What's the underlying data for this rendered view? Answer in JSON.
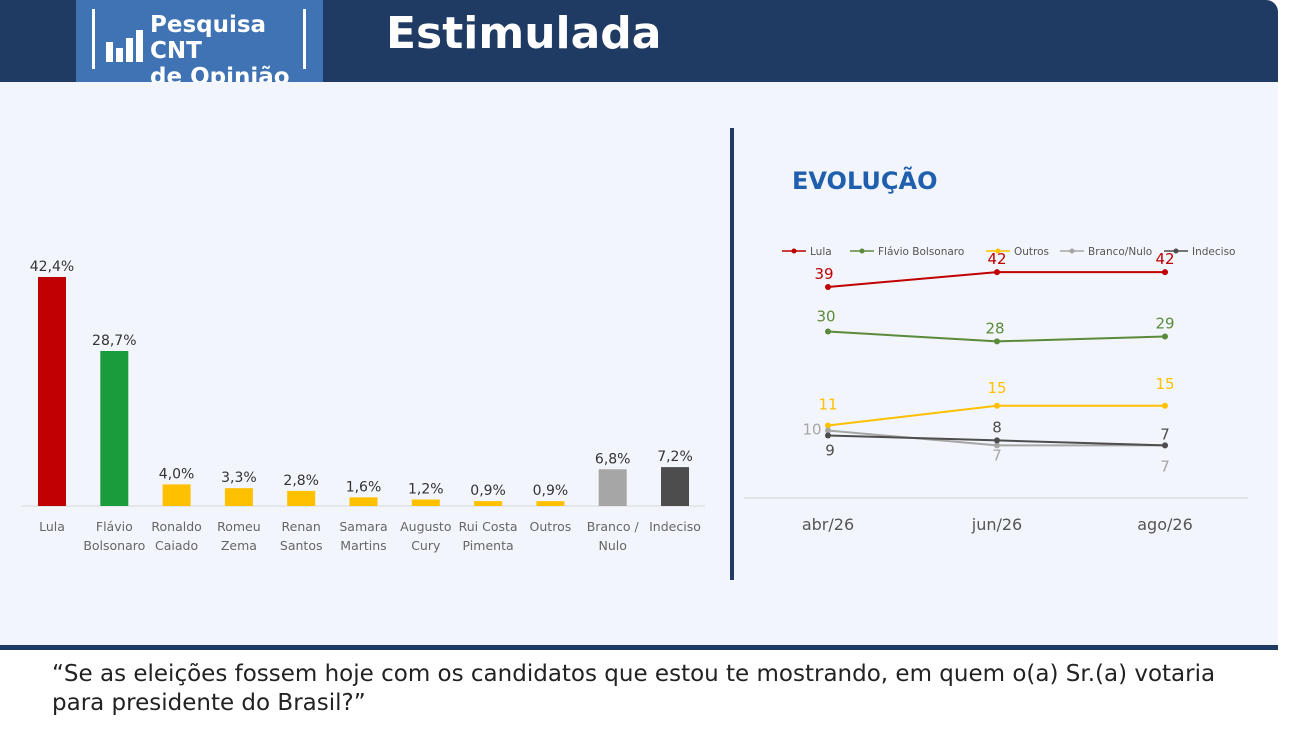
{
  "header": {
    "logo_line1": "Pesquisa CNT",
    "logo_line2": "de Opinião",
    "title": "Estimulada"
  },
  "question": "“Se as eleições fossem hoje com os candidatos que estou te mostrando, em quem o(a) Sr.(a) votaria para presidente do Brasil?”",
  "colors": {
    "header_bg": "#1f3a63",
    "logo_bg": "#3f73b3",
    "lula": "#c00000",
    "flavio": "#1a9b3c",
    "others_yellow": "#ffc000",
    "branco": "#a6a6a6",
    "indeciso": "#4d4d4d",
    "evolucao_title": "#1f5fae"
  },
  "chart_data": [
    {
      "type": "bar",
      "title": "",
      "categories": [
        [
          "Lula"
        ],
        [
          "Flávio",
          "Bolsonaro"
        ],
        [
          "Ronaldo",
          "Caiado"
        ],
        [
          "Romeu",
          "Zema"
        ],
        [
          "Renan",
          "Santos"
        ],
        [
          "Samara",
          "Martins"
        ],
        [
          "Augusto",
          "Cury"
        ],
        [
          "Rui Costa",
          "Pimenta"
        ],
        [
          "Outros"
        ],
        [
          "Branco /",
          "Nulo"
        ],
        [
          "Indeciso"
        ]
      ],
      "values": [
        42.4,
        28.7,
        4.0,
        3.3,
        2.8,
        1.6,
        1.2,
        0.9,
        0.9,
        6.8,
        7.2
      ],
      "value_labels": [
        "42,4%",
        "28,7%",
        "4,0%",
        "3,3%",
        "2,8%",
        "1,6%",
        "1,2%",
        "0,9%",
        "0,9%",
        "6,8%",
        "7,2%"
      ],
      "bar_colors": [
        "#c00000",
        "#1a9b3c",
        "#ffc000",
        "#ffc000",
        "#ffc000",
        "#ffc000",
        "#ffc000",
        "#ffc000",
        "#ffc000",
        "#a6a6a6",
        "#4d4d4d"
      ],
      "ylim": [
        0,
        42.4
      ]
    },
    {
      "type": "line",
      "title": "EVOLUÇÃO",
      "x": [
        "abr/26",
        "jun/26",
        "ago/26"
      ],
      "ylim": [
        0,
        45
      ],
      "legend_position": "top",
      "series": [
        {
          "name": "Lula",
          "color": "#c00000",
          "values": [
            39,
            42,
            42
          ],
          "labels": [
            "39",
            "42",
            "42"
          ]
        },
        {
          "name": "Flávio Bolsonaro",
          "color": "#5a8a3a",
          "values": [
            30,
            28,
            29
          ],
          "labels": [
            "30",
            "28",
            "29"
          ]
        },
        {
          "name": "Outros",
          "color": "#ffc000",
          "values": [
            11,
            15,
            15
          ],
          "labels": [
            "11",
            "15",
            "15"
          ]
        },
        {
          "name": "Branco/Nulo",
          "color": "#a6a6a6",
          "values": [
            10,
            7,
            7
          ],
          "labels": [
            "10",
            "7",
            "7"
          ]
        },
        {
          "name": "Indeciso",
          "color": "#4d4d4d",
          "values": [
            9,
            8,
            7
          ],
          "labels": [
            "9",
            "8",
            "7"
          ]
        }
      ]
    }
  ]
}
